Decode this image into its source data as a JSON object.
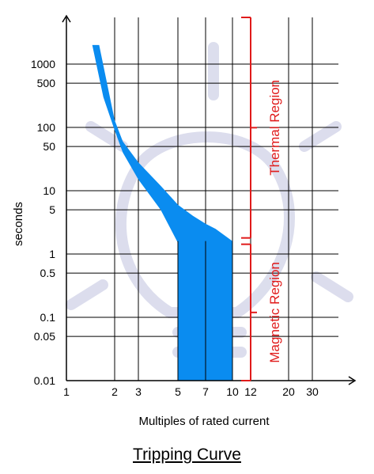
{
  "chart_data": {
    "type": "area",
    "title": "Tripping Curve",
    "xlabel": "Multiples of rated current",
    "ylabel": "seconds",
    "x_scale": "log",
    "y_scale": "log",
    "xlim": [
      1,
      30
    ],
    "ylim": [
      0.01,
      2000
    ],
    "grid": true,
    "x_ticks": [
      {
        "value": 1,
        "label": "1"
      },
      {
        "value": 2,
        "label": "2"
      },
      {
        "value": 3,
        "label": "3"
      },
      {
        "value": 5,
        "label": "5"
      },
      {
        "value": 7,
        "label": "7"
      },
      {
        "value": 10,
        "label": "10"
      },
      {
        "value": 12,
        "label": "12"
      },
      {
        "value": 20,
        "label": "20"
      },
      {
        "value": 30,
        "label": "30"
      }
    ],
    "y_ticks": [
      {
        "value": 0.01,
        "label": "0.01"
      },
      {
        "value": 0.05,
        "label": "0.05"
      },
      {
        "value": 0.1,
        "label": "0.1"
      },
      {
        "value": 0.5,
        "label": "0.5"
      },
      {
        "value": 1,
        "label": "1"
      },
      {
        "value": 5,
        "label": "5"
      },
      {
        "value": 10,
        "label": "10"
      },
      {
        "value": 50,
        "label": "50"
      },
      {
        "value": 100,
        "label": "100"
      },
      {
        "value": 500,
        "label": "500"
      },
      {
        "value": 1000,
        "label": "1000"
      }
    ],
    "band": {
      "color": "#0a8cf0",
      "upper": [
        [
          1.6,
          2000
        ],
        [
          2.0,
          130
        ],
        [
          2.3,
          60
        ],
        [
          3,
          28
        ],
        [
          4,
          12
        ],
        [
          5,
          6
        ],
        [
          6,
          4
        ],
        [
          7,
          3
        ],
        [
          8,
          2.5
        ],
        [
          10,
          1.6
        ]
      ],
      "lower": [
        [
          1.45,
          2000
        ],
        [
          1.7,
          300
        ],
        [
          2.0,
          90
        ],
        [
          2.3,
          40
        ],
        [
          3,
          15
        ],
        [
          4,
          5
        ],
        [
          5,
          1.5
        ]
      ],
      "magnetic_block": {
        "x_from": 5,
        "x_to": 10,
        "y_from": 0.01,
        "y_to_at_right": 1.6
      }
    },
    "annotations": [
      {
        "label": "Thermal Region",
        "color": "#e01b1b",
        "y_range": [
          1.6,
          2000
        ]
      },
      {
        "label": "Magnetic Region",
        "color": "#e01b1b",
        "y_range": [
          0.01,
          1.6
        ]
      }
    ]
  }
}
